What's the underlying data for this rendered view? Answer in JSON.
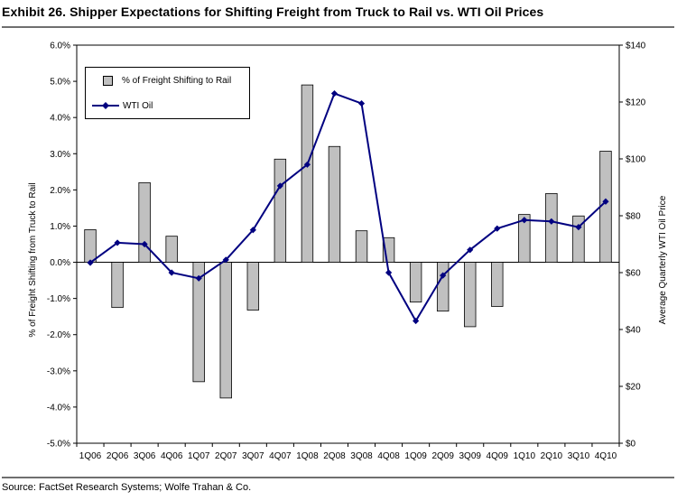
{
  "title": "Exhibit 26. Shipper Expectations for Shifting Freight from Truck to Rail vs. WTI Oil Prices",
  "source": "Source: FactSet Research Systems; Wolfe Trahan & Co.",
  "colors": {
    "bar_fill": "#c0c0c0",
    "bar_stroke": "#000000",
    "line": "#000080"
  },
  "chart_data": {
    "type": "bar",
    "categories": [
      "1Q06",
      "2Q06",
      "3Q06",
      "4Q06",
      "1Q07",
      "2Q07",
      "3Q07",
      "4Q07",
      "1Q08",
      "2Q08",
      "3Q08",
      "4Q08",
      "1Q09",
      "2Q09",
      "3Q09",
      "4Q09",
      "1Q10",
      "2Q10",
      "3Q10",
      "4Q10"
    ],
    "series": [
      {
        "name": "% of Freight Shifting to Rail",
        "type": "bar",
        "axis": "left",
        "values": [
          0.9,
          -1.25,
          2.2,
          0.72,
          -3.3,
          -3.75,
          -1.32,
          2.85,
          4.9,
          3.2,
          0.87,
          0.68,
          -1.1,
          -1.35,
          -1.78,
          -1.22,
          1.32,
          1.9,
          1.28,
          3.07
        ]
      },
      {
        "name": "WTI Oil",
        "type": "line",
        "axis": "right",
        "values": [
          63.5,
          70.5,
          70,
          60,
          58,
          64.5,
          75,
          90.5,
          98,
          123,
          119.5,
          60,
          43,
          59,
          68,
          75.5,
          78.5,
          78,
          76,
          85
        ]
      }
    ],
    "y_left": {
      "label": "% of Freight Shifting from Truck to Rail",
      "min": -5,
      "max": 6,
      "ticks": [
        "-5.0%",
        "-4.0%",
        "-3.0%",
        "-2.0%",
        "-1.0%",
        "0.0%",
        "1.0%",
        "2.0%",
        "3.0%",
        "4.0%",
        "5.0%",
        "6.0%"
      ]
    },
    "y_right": {
      "label": "Average Quarterly WTI Oil Price",
      "min": 0,
      "max": 140,
      "ticks": [
        "$0",
        "$20",
        "$40",
        "$60",
        "$80",
        "$100",
        "$120",
        "$140"
      ]
    },
    "grid": false,
    "legend": "top-left"
  }
}
